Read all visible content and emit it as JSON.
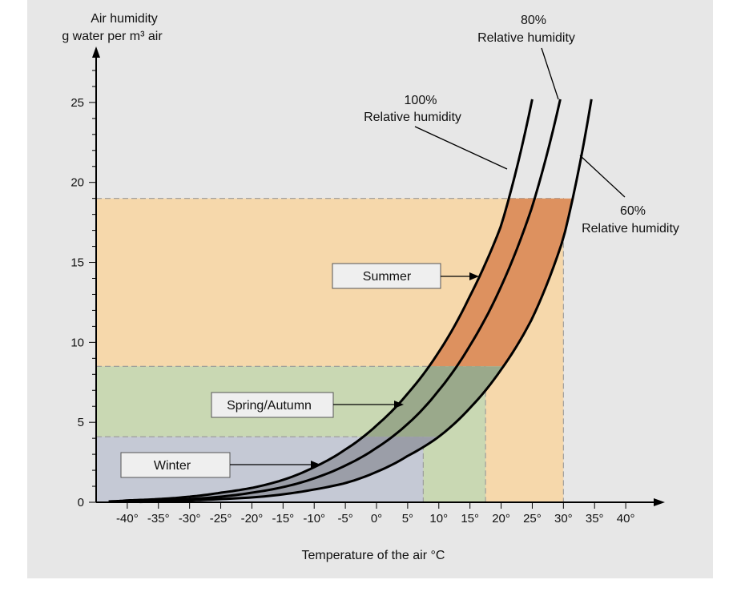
{
  "chart_data": {
    "type": "line",
    "ylabel_line1": "Air humidity",
    "ylabel_line2": "g water per m³ air",
    "xlabel": "Temperature of the air °C",
    "xlim": [
      -45,
      45
    ],
    "ylim": [
      0,
      28
    ],
    "x_ticks": [
      -40,
      -35,
      -30,
      -25,
      -20,
      -15,
      -10,
      -5,
      0,
      5,
      10,
      15,
      20,
      25,
      30,
      35,
      40
    ],
    "x_tick_labels": [
      "-40°",
      "-35°",
      "-30°",
      "-25°",
      "-20°",
      "-15°",
      "-10°",
      "-5°",
      "0°",
      "5°",
      "10°",
      "15°",
      "20°",
      "25°",
      "30°",
      "35°",
      "40°"
    ],
    "y_ticks": [
      0,
      5,
      10,
      15,
      20,
      25
    ],
    "y_tick_labels": [
      "0",
      "5",
      "10",
      "15",
      "20",
      "25"
    ],
    "series": [
      {
        "name": "100% Relative humidity",
        "x": [
          -43,
          -40,
          -35,
          -30,
          -25,
          -20,
          -15,
          -10,
          -5,
          0,
          5,
          10,
          15,
          20,
          25
        ],
        "y": [
          0.05,
          0.12,
          0.2,
          0.35,
          0.6,
          0.9,
          1.4,
          2.2,
          3.3,
          4.8,
          6.8,
          9.4,
          12.9,
          17.3,
          25.2
        ]
      },
      {
        "name": "80% Relative humidity",
        "x": [
          -40,
          -35,
          -30,
          -25,
          -20,
          -15,
          -10,
          -5,
          0,
          5,
          10,
          15,
          20,
          25,
          29.5
        ],
        "y": [
          0.05,
          0.12,
          0.2,
          0.35,
          0.6,
          0.95,
          1.5,
          2.3,
          3.4,
          4.9,
          7.0,
          9.8,
          13.5,
          18.5,
          25.2
        ]
      },
      {
        "name": "60% Relative humidity",
        "x": [
          -38,
          -35,
          -30,
          -25,
          -20,
          -15,
          -10,
          -5,
          0,
          5,
          10,
          15,
          20,
          25,
          30,
          34.5
        ],
        "y": [
          0.02,
          0.05,
          0.12,
          0.2,
          0.3,
          0.5,
          0.8,
          1.2,
          1.9,
          2.9,
          4.1,
          5.9,
          8.3,
          11.5,
          16.5,
          25.2
        ]
      }
    ],
    "regions": [
      {
        "name": "Summer",
        "x_max": 30,
        "y_max": 19,
        "color": "#f6d8ab"
      },
      {
        "name": "Spring/Autumn",
        "x_max": 17.5,
        "y_max": 8.5,
        "color": "#c9d8b3"
      },
      {
        "name": "Winter",
        "x_max": 7.5,
        "y_max": 4.1,
        "color": "#c5c9d5"
      }
    ],
    "curve_labels": [
      {
        "percent": "100%",
        "text": "Relative humidity"
      },
      {
        "percent": "80%",
        "text": "Relative humidity"
      },
      {
        "percent": "60%",
        "text": "Relative humidity"
      }
    ],
    "colors": {
      "background": "#e7e7e7",
      "summer_band": "#dd915f",
      "spring_band": "#9aa98b",
      "winter_band": "#9b9ea8",
      "curve": "#000000"
    }
  }
}
